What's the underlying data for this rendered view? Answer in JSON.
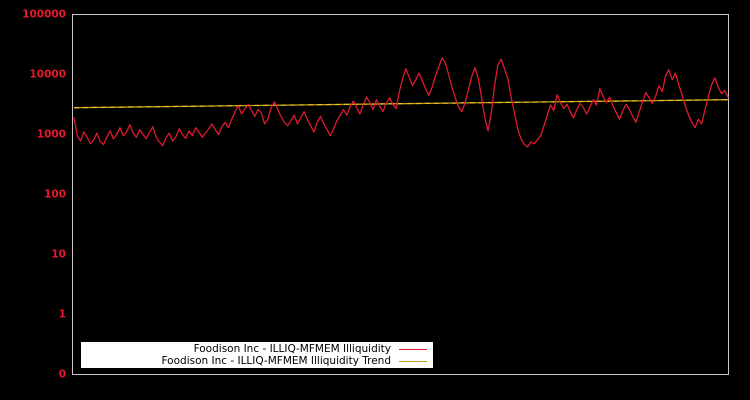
{
  "window": {
    "background_color": "#000000"
  },
  "chart_data": {
    "type": "line",
    "title": "",
    "xlabel": "",
    "ylabel": "",
    "grid": false,
    "legend_position": "bottom-left",
    "frame_color": "#c6c6c6",
    "tick_label_color": "#e8182b",
    "legend": {
      "background_color": "#ffffff",
      "text_color": "#000000"
    },
    "y_axis": {
      "scale": "log",
      "range_bottom": 0.1,
      "range_top": 100000,
      "tick_labels": [
        "100000",
        "10000",
        "1000",
        "100",
        "10",
        "1",
        "0"
      ]
    },
    "x_axis": {
      "tick_labels": []
    },
    "series": [
      {
        "name": "Foodison Inc - ILLIQ-MFMEM Illiquidity",
        "color": "#dd1a2e",
        "values": [
          1900,
          950,
          780,
          1100,
          900,
          700,
          820,
          1050,
          760,
          680,
          900,
          1150,
          850,
          1000,
          1300,
          950,
          1100,
          1450,
          1050,
          900,
          1200,
          1000,
          850,
          1100,
          1350,
          900,
          750,
          650,
          880,
          1050,
          780,
          920,
          1250,
          1000,
          860,
          1150,
          950,
          1300,
          1100,
          900,
          1050,
          1250,
          1500,
          1200,
          1000,
          1350,
          1600,
          1300,
          1800,
          2400,
          3000,
          2200,
          2700,
          3200,
          2500,
          2000,
          2600,
          2300,
          1500,
          1800,
          2800,
          3500,
          2600,
          2000,
          1600,
          1400,
          1700,
          2100,
          1500,
          1900,
          2400,
          1800,
          1400,
          1100,
          1600,
          2000,
          1500,
          1200,
          950,
          1250,
          1700,
          2100,
          2600,
          2100,
          2900,
          3600,
          2800,
          2200,
          3100,
          4200,
          3400,
          2600,
          3800,
          3000,
          2400,
          3300,
          4100,
          3200,
          2700,
          5200,
          8500,
          12500,
          9000,
          6500,
          8200,
          10500,
          7800,
          5800,
          4500,
          6200,
          9500,
          13500,
          19000,
          15500,
          9800,
          6200,
          4100,
          2900,
          2400,
          3400,
          5600,
          9200,
          13000,
          8800,
          4200,
          1900,
          1150,
          2400,
          6800,
          14500,
          18000,
          12500,
          8600,
          4200,
          2300,
          1250,
          850,
          680,
          620,
          750,
          700,
          820,
          950,
          1400,
          2100,
          3100,
          2500,
          4600,
          3400,
          2700,
          3200,
          2400,
          1900,
          2600,
          3300,
          2800,
          2200,
          2900,
          3800,
          3100,
          5800,
          4300,
          3400,
          4200,
          3000,
          2300,
          1800,
          2500,
          3200,
          2600,
          2000,
          1600,
          2400,
          3600,
          5000,
          4100,
          3300,
          4400,
          6500,
          5200,
          9500,
          12000,
          8200,
          10500,
          6800,
          4600,
          3000,
          2100,
          1600,
          1300,
          1800,
          1500,
          2600,
          4200,
          6800,
          8800,
          6200,
          4800,
          5400,
          4200
        ]
      },
      {
        "name": "Foodison Inc - ILLIQ-MFMEM Illiquidity Trend",
        "color": "#c59b1a",
        "dash_color": "#ecc72a",
        "trend": {
          "start_value": 2800,
          "end_value": 3800
        }
      }
    ]
  }
}
